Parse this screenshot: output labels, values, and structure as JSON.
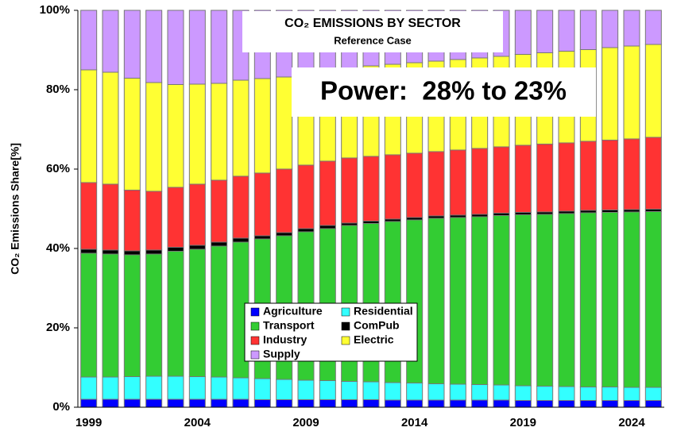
{
  "chart_data": {
    "type": "stacked_bar",
    "title": "CO₂ EMISSIONS BY SECTOR",
    "subtitle": "Reference Case",
    "annotation": "Power:  28% to 23%",
    "y_label": "CO₂ Emissions Share[%]",
    "categories": [
      "1999",
      null,
      null,
      null,
      null,
      "2004",
      null,
      null,
      null,
      null,
      "2009",
      null,
      null,
      null,
      null,
      "2014",
      null,
      null,
      null,
      null,
      "2019",
      null,
      null,
      null,
      null,
      "2024",
      null
    ],
    "ylim": [
      0,
      100
    ],
    "yticks": [
      {
        "value": 0,
        "label": "0%"
      },
      {
        "value": 20,
        "label": "20%"
      },
      {
        "value": 40,
        "label": "40%"
      },
      {
        "value": 60,
        "label": "60%"
      },
      {
        "value": 80,
        "label": "80%"
      },
      {
        "value": 100,
        "label": "100%"
      }
    ],
    "series": [
      {
        "name": "Agriculture",
        "color": "#0000ff",
        "values": [
          2.0,
          2.0,
          2.0,
          2.0,
          2.0,
          2.0,
          2.0,
          2.0,
          1.9,
          1.9,
          1.9,
          1.9,
          1.9,
          1.9,
          1.8,
          1.8,
          1.8,
          1.8,
          1.8,
          1.8,
          1.7,
          1.7,
          1.7,
          1.7,
          1.7,
          1.7,
          1.7
        ]
      },
      {
        "name": "Residential",
        "color": "#33ffff",
        "values": [
          5.6,
          5.6,
          5.7,
          5.8,
          5.8,
          5.7,
          5.6,
          5.4,
          5.3,
          5.1,
          4.9,
          4.8,
          4.6,
          4.5,
          4.4,
          4.3,
          4.1,
          4.0,
          3.9,
          3.8,
          3.7,
          3.6,
          3.5,
          3.4,
          3.4,
          3.3,
          3.3
        ]
      },
      {
        "name": "Transport",
        "color": "#33cc33",
        "values": [
          31.2,
          31.0,
          30.7,
          30.8,
          31.5,
          32.1,
          33.0,
          34.2,
          35.2,
          36.2,
          37.4,
          38.3,
          39.3,
          39.9,
          40.6,
          41.1,
          41.7,
          42.0,
          42.3,
          42.7,
          43.1,
          43.3,
          43.6,
          43.9,
          44.0,
          44.2,
          44.3
        ]
      },
      {
        "name": "ComPub",
        "color": "#000000",
        "values": [
          1.0,
          1.0,
          1.0,
          1.0,
          1.0,
          1.0,
          1.0,
          1.0,
          0.8,
          0.8,
          0.8,
          0.8,
          0.6,
          0.6,
          0.6,
          0.6,
          0.6,
          0.6,
          0.6,
          0.6,
          0.6,
          0.6,
          0.6,
          0.6,
          0.6,
          0.6,
          0.6
        ]
      },
      {
        "name": "Industry",
        "color": "#ff3333",
        "values": [
          16.8,
          16.6,
          15.3,
          14.8,
          15.1,
          15.4,
          15.6,
          15.6,
          15.8,
          16.0,
          16.0,
          16.2,
          16.4,
          16.3,
          16.2,
          16.2,
          16.2,
          16.4,
          16.6,
          16.7,
          16.9,
          17.1,
          17.2,
          17.4,
          17.6,
          17.8,
          18.1
        ]
      },
      {
        "name": "Electric",
        "color": "#ffff33",
        "values": [
          28.4,
          28.2,
          28.2,
          27.4,
          25.9,
          25.2,
          24.4,
          24.2,
          23.8,
          23.2,
          22.8,
          22.4,
          22.2,
          22.8,
          22.8,
          22.8,
          22.8,
          22.8,
          22.8,
          22.8,
          22.9,
          23.0,
          23.1,
          23.1,
          23.3,
          23.4,
          23.4
        ]
      },
      {
        "name": "Supply",
        "color": "#cc99ff",
        "values": [
          15.0,
          15.6,
          17.1,
          18.2,
          18.7,
          18.6,
          18.4,
          17.6,
          17.2,
          16.8,
          16.2,
          15.6,
          15.0,
          14.0,
          13.6,
          13.2,
          12.8,
          12.4,
          12.0,
          11.6,
          11.1,
          10.7,
          10.3,
          9.9,
          9.4,
          9.0,
          8.6
        ]
      }
    ]
  }
}
